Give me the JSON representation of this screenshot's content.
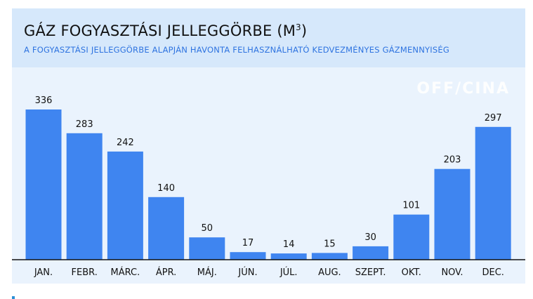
{
  "header": {
    "title": "GÁZ FOGYASZTÁSI JELLEGGÖRBE (M",
    "title_sup": "3",
    "title_close": ")",
    "subtitle": "A FOGYASZTÁSI JELLEGGÖRBE ALAPJÁN HAVONTA FELHASZNÁLHATÓ KEDVEZMÉNYES GÁZMENNYISÉG"
  },
  "logo": {
    "text": "OFF/CINA",
    "icon": "officina-logo"
  },
  "colors": {
    "bar": "#3f85f0",
    "header_bg": "#d6e8fb",
    "card_bg": "#eaf3fd",
    "subtitle": "#2f74e0",
    "baseline": "#111111"
  },
  "chart_data": {
    "type": "bar",
    "title": "GÁZ FOGYASZTÁSI JELLEGGÖRBE (M3)",
    "categories": [
      "JAN.",
      "FEBR.",
      "MÁRC.",
      "ÁPR.",
      "MÁJ.",
      "JÚN.",
      "JÚL.",
      "AUG.",
      "SZEPT.",
      "OKT.",
      "NOV.",
      "DEC."
    ],
    "values": [
      336,
      283,
      242,
      140,
      50,
      17,
      14,
      15,
      30,
      101,
      203,
      297
    ],
    "ylim": [
      0,
      336
    ],
    "grid": false,
    "legend": "none",
    "data_labels": true
  }
}
